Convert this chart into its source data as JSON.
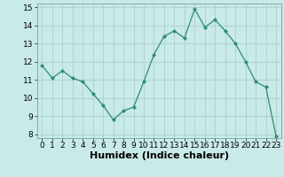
{
  "x": [
    0,
    1,
    2,
    3,
    4,
    5,
    6,
    7,
    8,
    9,
    10,
    11,
    12,
    13,
    14,
    15,
    16,
    17,
    18,
    19,
    20,
    21,
    22,
    23
  ],
  "y": [
    11.8,
    11.1,
    11.5,
    11.1,
    10.9,
    10.25,
    9.6,
    8.8,
    9.3,
    9.5,
    10.9,
    12.4,
    13.4,
    13.7,
    13.3,
    14.9,
    13.9,
    14.3,
    13.7,
    13.0,
    12.0,
    10.9,
    10.6,
    7.9
  ],
  "xlim": [
    -0.5,
    23.5
  ],
  "ylim": [
    7.8,
    15.2
  ],
  "yticks": [
    8,
    9,
    10,
    11,
    12,
    13,
    14,
    15
  ],
  "xticks": [
    0,
    1,
    2,
    3,
    4,
    5,
    6,
    7,
    8,
    9,
    10,
    11,
    12,
    13,
    14,
    15,
    16,
    17,
    18,
    19,
    20,
    21,
    22,
    23
  ],
  "xlabel": "Humidex (Indice chaleur)",
  "line_color": "#2e8b7a",
  "marker": "D",
  "marker_size": 2.0,
  "background_color": "#c8eae8",
  "grid_color": "#b0cece",
  "tick_label_fontsize": 6.5,
  "xlabel_fontsize": 8.0
}
